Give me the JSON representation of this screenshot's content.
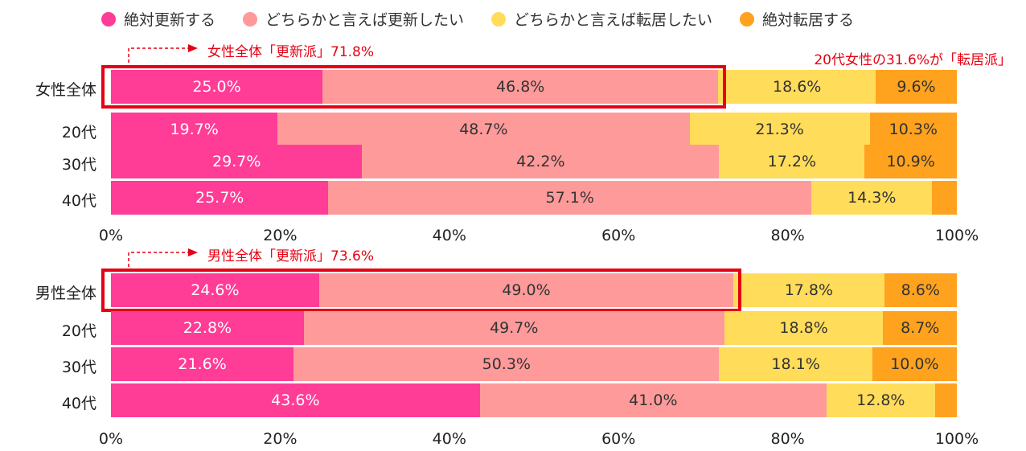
{
  "legend": [
    {
      "label": "絶対更新する",
      "color": "#ff3c96"
    },
    {
      "label": "どちらかと言えば更新したい",
      "color": "#ff9a9a"
    },
    {
      "label": "どちらかと言えば転居したい",
      "color": "#ffdc5a"
    },
    {
      "label": "絶対転居する",
      "color": "#ffa21e"
    }
  ],
  "annotations": {
    "female_total": "女性全体「更新派」71.8%",
    "female_20s": "20代女性の31.6%が「転居派」",
    "male_total": "男性全体「更新派」73.6%"
  },
  "chart_data": [
    {
      "type": "bar",
      "orientation": "horizontal",
      "stacked": true,
      "xlim": [
        0,
        100
      ],
      "xticks": [
        "0%",
        "20%",
        "40%",
        "60%",
        "80%",
        "100%"
      ],
      "categories": [
        "女性全体",
        "20代",
        "30代",
        "40代"
      ],
      "series": [
        {
          "name": "絶対更新する",
          "values": [
            25.0,
            19.7,
            29.7,
            25.7
          ],
          "labels": [
            "25.0%",
            "19.7%",
            "29.7%",
            "25.7%"
          ]
        },
        {
          "name": "どちらかと言えば更新したい",
          "values": [
            46.8,
            48.7,
            42.2,
            57.1
          ],
          "labels": [
            "46.8%",
            "48.7%",
            "42.2%",
            "57.1%"
          ]
        },
        {
          "name": "どちらかと言えば転居したい",
          "values": [
            18.6,
            21.3,
            17.2,
            14.3
          ],
          "labels": [
            "18.6%",
            "21.3%",
            "17.2%",
            "14.3%"
          ]
        },
        {
          "name": "絶対転居する",
          "values": [
            9.6,
            10.3,
            10.9,
            2.9
          ],
          "labels": [
            "9.6%",
            "10.3%",
            "10.9%",
            ""
          ]
        }
      ],
      "highlight": "女性全体"
    },
    {
      "type": "bar",
      "orientation": "horizontal",
      "stacked": true,
      "xlim": [
        0,
        100
      ],
      "xticks": [
        "0%",
        "20%",
        "40%",
        "60%",
        "80%",
        "100%"
      ],
      "categories": [
        "男性全体",
        "20代",
        "30代",
        "40代"
      ],
      "series": [
        {
          "name": "絶対更新する",
          "values": [
            24.6,
            22.8,
            21.6,
            43.6
          ],
          "labels": [
            "24.6%",
            "22.8%",
            "21.6%",
            "43.6%"
          ]
        },
        {
          "name": "どちらかと言えば更新したい",
          "values": [
            49.0,
            49.7,
            50.3,
            41.0
          ],
          "labels": [
            "49.0%",
            "49.7%",
            "50.3%",
            "41.0%"
          ]
        },
        {
          "name": "どちらかと言えば転居したい",
          "values": [
            17.8,
            18.8,
            18.1,
            12.8
          ],
          "labels": [
            "17.8%",
            "18.8%",
            "18.1%",
            "12.8%"
          ]
        },
        {
          "name": "絶対転居する",
          "values": [
            8.6,
            8.7,
            10.0,
            2.6
          ],
          "labels": [
            "8.6%",
            "8.7%",
            "10.0%",
            ""
          ]
        }
      ],
      "highlight": "男性全体"
    }
  ]
}
